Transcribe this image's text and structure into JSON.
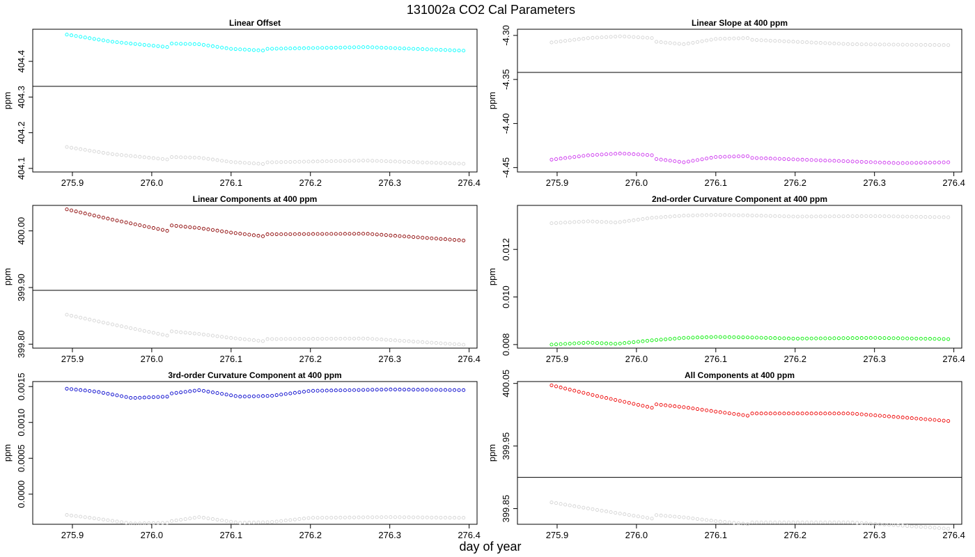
{
  "figure": {
    "title": "131002a   CO2 Cal Parameters",
    "xlabel": "day of year"
  },
  "chart_data": [
    {
      "type": "scatter",
      "title": "Linear Offset",
      "ylabel": "ppm",
      "xlim": [
        275.85,
        276.41
      ],
      "ylim": [
        404.09,
        404.49
      ],
      "xticks": [
        275.9,
        276.0,
        276.1,
        276.2,
        276.3,
        276.4
      ],
      "xtick_labels": [
        "275.9",
        "276.0",
        "276.1",
        "276.2",
        "276.3",
        "276.4"
      ],
      "yticks": [
        404.1,
        404.2,
        404.3,
        404.4
      ],
      "ytick_labels": [
        "404.1",
        "404.2",
        "404.3",
        "404.4"
      ],
      "hline": 404.33,
      "x_start": 275.893,
      "x_end": 276.393,
      "n_points": 88,
      "series": [
        {
          "color": "#00ffff",
          "knots": [
            [
              275.893,
              404.475
            ],
            [
              275.95,
              404.455
            ],
            [
              276.02,
              404.44
            ],
            [
              276.022,
              404.45
            ],
            [
              276.06,
              404.448
            ],
            [
              276.1,
              404.435
            ],
            [
              276.143,
              404.43
            ],
            [
              276.145,
              404.435
            ],
            [
              276.27,
              404.44
            ],
            [
              276.393,
              404.43
            ]
          ]
        },
        {
          "color": "#d3d3d3",
          "knots": [
            [
              275.893,
              404.16
            ],
            [
              275.95,
              404.14
            ],
            [
              276.02,
              404.125
            ],
            [
              276.022,
              404.132
            ],
            [
              276.06,
              404.13
            ],
            [
              276.1,
              404.118
            ],
            [
              276.143,
              404.112
            ],
            [
              276.145,
              404.117
            ],
            [
              276.27,
              404.122
            ],
            [
              276.393,
              404.113
            ]
          ]
        }
      ]
    },
    {
      "type": "scatter",
      "title": "Linear Slope at 400 ppm",
      "ylabel": "ppm",
      "xlim": [
        275.85,
        276.41
      ],
      "ylim": [
        -4.455,
        -4.293
      ],
      "xticks": [
        275.9,
        276.0,
        276.1,
        276.2,
        276.3,
        276.4
      ],
      "xtick_labels": [
        "275.9",
        "276.0",
        "276.1",
        "276.2",
        "276.3",
        "276.4"
      ],
      "yticks": [
        -4.3,
        -4.35,
        -4.4,
        -4.45
      ],
      "ytick_labels": [
        "-4.30",
        "-4.35",
        "-4.40",
        "-4.45"
      ],
      "hline": -4.342,
      "x_start": 275.893,
      "x_end": 276.393,
      "n_points": 88,
      "series": [
        {
          "color": "#d3d3d3",
          "knots": [
            [
              275.893,
              -4.308
            ],
            [
              275.94,
              -4.303
            ],
            [
              275.98,
              -4.301
            ],
            [
              276.02,
              -4.303
            ],
            [
              276.022,
              -4.307
            ],
            [
              276.06,
              -4.31
            ],
            [
              276.1,
              -4.304
            ],
            [
              276.14,
              -4.303
            ],
            [
              276.145,
              -4.305
            ],
            [
              276.27,
              -4.31
            ],
            [
              276.393,
              -4.311
            ]
          ]
        },
        {
          "color": "#cc33ee",
          "knots": [
            [
              275.893,
              -4.441
            ],
            [
              275.94,
              -4.436
            ],
            [
              275.98,
              -4.434
            ],
            [
              276.02,
              -4.436
            ],
            [
              276.022,
              -4.44
            ],
            [
              276.06,
              -4.444
            ],
            [
              276.1,
              -4.438
            ],
            [
              276.14,
              -4.437
            ],
            [
              276.145,
              -4.439
            ],
            [
              276.27,
              -4.443
            ],
            [
              276.33,
              -4.445
            ],
            [
              276.393,
              -4.444
            ]
          ]
        }
      ]
    },
    {
      "type": "scatter",
      "title": "Linear Components at 400 ppm",
      "ylabel": "ppm",
      "xlim": [
        275.85,
        276.41
      ],
      "ylim": [
        399.793,
        400.045
      ],
      "xticks": [
        275.9,
        276.0,
        276.1,
        276.2,
        276.3,
        276.4
      ],
      "xtick_labels": [
        "275.9",
        "276.0",
        "276.1",
        "276.2",
        "276.3",
        "276.4"
      ],
      "yticks": [
        399.8,
        399.9,
        400.0
      ],
      "ytick_labels": [
        "399.80",
        "399.90",
        "400.00"
      ],
      "hline": 399.895,
      "x_start": 275.893,
      "x_end": 276.393,
      "n_points": 88,
      "series": [
        {
          "color": "#8b0000",
          "knots": [
            [
              275.893,
              400.038
            ],
            [
              275.95,
              400.02
            ],
            [
              276.02,
              400.0
            ],
            [
              276.022,
              400.01
            ],
            [
              276.06,
              400.005
            ],
            [
              276.1,
              399.997
            ],
            [
              276.143,
              399.99
            ],
            [
              276.145,
              399.994
            ],
            [
              276.27,
              399.995
            ],
            [
              276.393,
              399.983
            ]
          ]
        },
        {
          "color": "#d3d3d3",
          "knots": [
            [
              275.893,
              399.852
            ],
            [
              275.95,
              399.835
            ],
            [
              276.02,
              399.815
            ],
            [
              276.022,
              399.823
            ],
            [
              276.06,
              399.818
            ],
            [
              276.1,
              399.811
            ],
            [
              276.143,
              399.805
            ],
            [
              276.145,
              399.809
            ],
            [
              276.27,
              399.81
            ],
            [
              276.393,
              399.799
            ]
          ]
        }
      ]
    },
    {
      "type": "scatter",
      "title": "2nd-order Curvature Component at 400 ppm",
      "ylabel": "ppm",
      "xlim": [
        275.85,
        276.41
      ],
      "ylim": [
        0.00785,
        0.01385
      ],
      "xticks": [
        275.9,
        276.0,
        276.1,
        276.2,
        276.3,
        276.4
      ],
      "xtick_labels": [
        "275.9",
        "276.0",
        "276.1",
        "276.2",
        "276.3",
        "276.4"
      ],
      "yticks": [
        0.008,
        0.01,
        0.012
      ],
      "ytick_labels": [
        "0.008",
        "0.010",
        "0.012"
      ],
      "hline": null,
      "x_start": 275.893,
      "x_end": 276.393,
      "n_points": 88,
      "series": [
        {
          "color": "#d3d3d3",
          "knots": [
            [
              275.893,
              0.0131
            ],
            [
              275.94,
              0.01318
            ],
            [
              275.975,
              0.01313
            ],
            [
              276.02,
              0.01333
            ],
            [
              276.06,
              0.01342
            ],
            [
              276.1,
              0.01345
            ],
            [
              276.14,
              0.01343
            ],
            [
              276.2,
              0.01338
            ],
            [
              276.3,
              0.0134
            ],
            [
              276.393,
              0.01335
            ]
          ]
        },
        {
          "color": "#00ee00",
          "knots": [
            [
              275.893,
              0.008
            ],
            [
              275.94,
              0.00808
            ],
            [
              275.975,
              0.00803
            ],
            [
              276.02,
              0.00818
            ],
            [
              276.06,
              0.00828
            ],
            [
              276.1,
              0.00832
            ],
            [
              276.14,
              0.0083
            ],
            [
              276.2,
              0.00825
            ],
            [
              276.3,
              0.00828
            ],
            [
              276.393,
              0.00823
            ]
          ]
        }
      ]
    },
    {
      "type": "scatter",
      "title": "3rd-order Curvature Component at 400 ppm",
      "ylabel": "ppm",
      "xlim": [
        275.85,
        276.41
      ],
      "ylim": [
        -0.00042,
        0.00157
      ],
      "xticks": [
        275.9,
        276.0,
        276.1,
        276.2,
        276.3,
        276.4
      ],
      "xtick_labels": [
        "275.9",
        "276.0",
        "276.1",
        "276.2",
        "276.3",
        "276.4"
      ],
      "yticks": [
        0.0,
        0.0005,
        0.001,
        0.0015
      ],
      "ytick_labels": [
        "0.0000",
        "0.0005",
        "0.0010",
        "0.0015"
      ],
      "hline": null,
      "x_start": 275.893,
      "x_end": 276.393,
      "n_points": 88,
      "series": [
        {
          "color": "#0000cc",
          "knots": [
            [
              275.893,
              0.00147
            ],
            [
              275.93,
              0.00143
            ],
            [
              275.975,
              0.00134
            ],
            [
              276.02,
              0.00136
            ],
            [
              276.022,
              0.0014
            ],
            [
              276.06,
              0.00145
            ],
            [
              276.11,
              0.00136
            ],
            [
              276.15,
              0.00137
            ],
            [
              276.2,
              0.00144
            ],
            [
              276.3,
              0.00146
            ],
            [
              276.393,
              0.00145
            ]
          ]
        },
        {
          "color": "#d3d3d3",
          "knots": [
            [
              275.893,
              -0.00029
            ],
            [
              275.93,
              -0.00034
            ],
            [
              275.975,
              -0.00041
            ],
            [
              276.02,
              -0.0004
            ],
            [
              276.022,
              -0.00038
            ],
            [
              276.06,
              -0.00032
            ],
            [
              276.11,
              -0.0004
            ],
            [
              276.15,
              -0.00039
            ],
            [
              276.2,
              -0.00033
            ],
            [
              276.3,
              -0.00032
            ],
            [
              276.393,
              -0.00033
            ]
          ]
        }
      ]
    },
    {
      "type": "scatter",
      "title": "All Components at 400 ppm",
      "ylabel": "ppm",
      "xlim": [
        275.85,
        276.41
      ],
      "ylim": [
        399.825,
        400.053
      ],
      "xticks": [
        275.9,
        276.0,
        276.1,
        276.2,
        276.3,
        276.4
      ],
      "xtick_labels": [
        "275.9",
        "276.0",
        "276.1",
        "276.2",
        "276.3",
        "276.4"
      ],
      "yticks": [
        399.85,
        399.95,
        400.05
      ],
      "ytick_labels": [
        "399.85",
        "399.95",
        "400.05"
      ],
      "hline": 399.9,
      "x_start": 275.893,
      "x_end": 276.393,
      "n_points": 88,
      "series": [
        {
          "color": "#ee0000",
          "knots": [
            [
              275.893,
              400.047
            ],
            [
              275.95,
              400.03
            ],
            [
              276.02,
              400.011
            ],
            [
              276.022,
              400.017
            ],
            [
              276.06,
              400.012
            ],
            [
              276.1,
              400.005
            ],
            [
              276.143,
              399.998
            ],
            [
              276.145,
              400.002
            ],
            [
              276.27,
              400.002
            ],
            [
              276.393,
              399.99
            ]
          ]
        },
        {
          "color": "#d3d3d3",
          "knots": [
            [
              275.893,
              399.86
            ],
            [
              275.95,
              399.848
            ],
            [
              276.02,
              399.834
            ],
            [
              276.022,
              399.84
            ],
            [
              276.06,
              399.836
            ],
            [
              276.1,
              399.83
            ],
            [
              276.143,
              399.825
            ],
            [
              276.145,
              399.828
            ],
            [
              276.27,
              399.828
            ],
            [
              276.393,
              399.818
            ]
          ]
        }
      ]
    }
  ]
}
